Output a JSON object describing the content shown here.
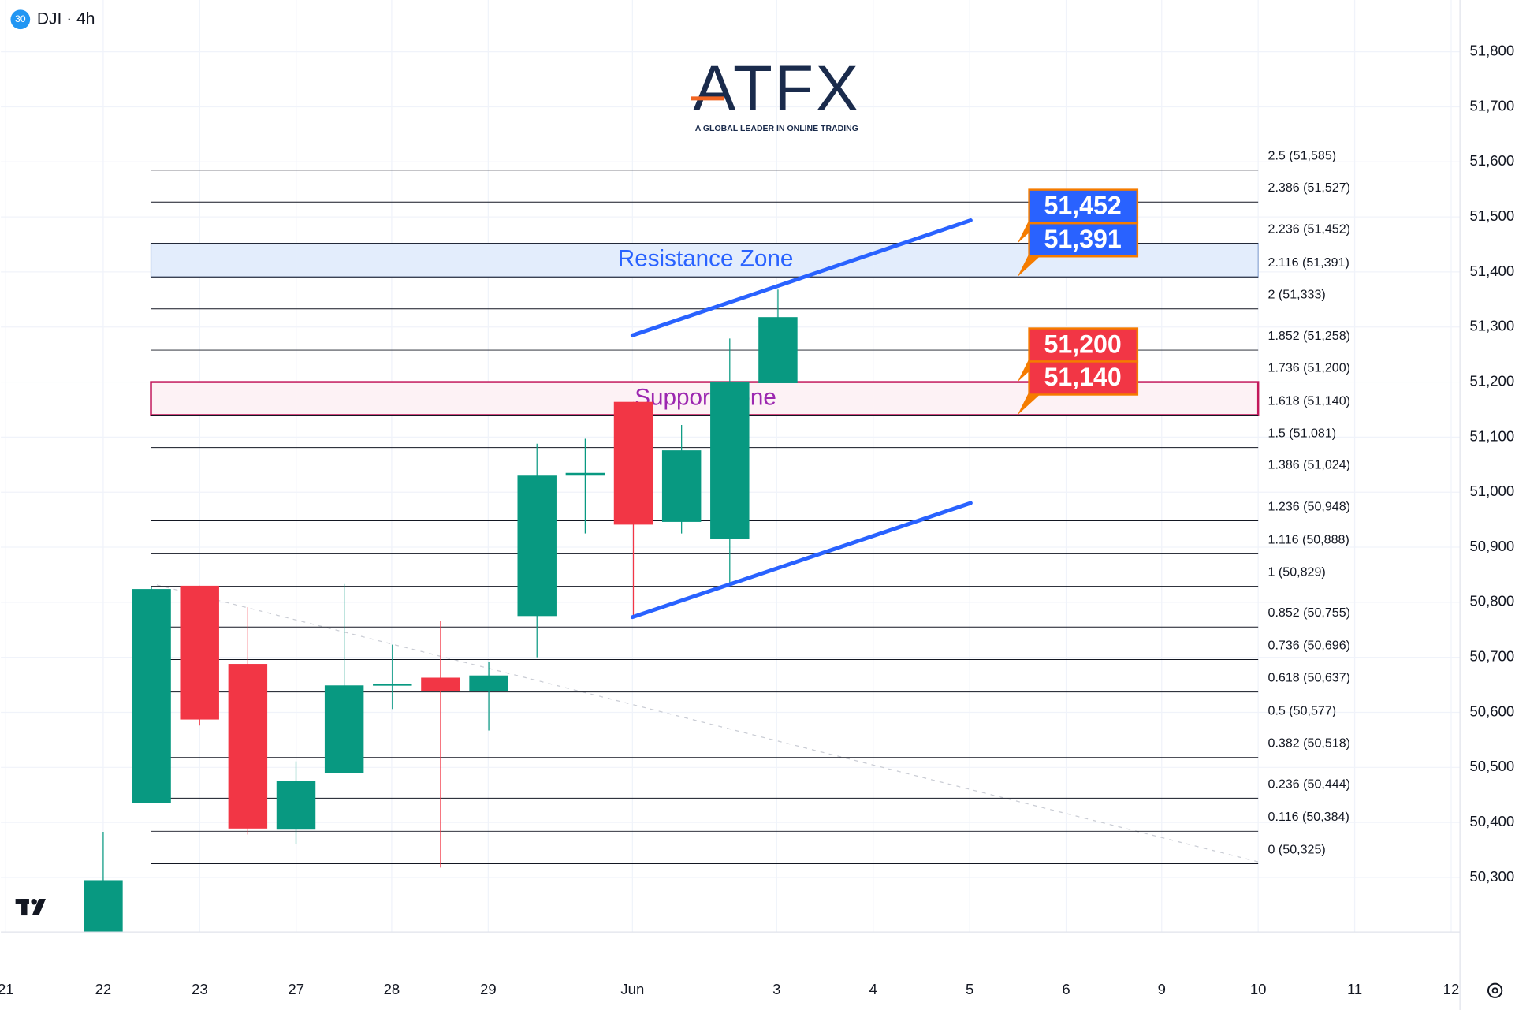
{
  "chart_data": {
    "type": "candlestick",
    "title": "DJI · 4h",
    "badge": "30",
    "brand": {
      "name": "ATFX",
      "tagline": "A GLOBAL LEADER IN ONLINE TRADING"
    },
    "up_color": "#089981",
    "down_color": "#f23645",
    "candles": {
      "open": [
        50201,
        50436,
        50830,
        50688,
        50387,
        50489,
        50649,
        50663,
        50638,
        50775,
        51030,
        51164,
        50946,
        50915,
        51198
      ],
      "high": [
        50383,
        50828,
        50830,
        50791,
        50511,
        50833,
        50723,
        50766,
        50691,
        51088,
        51097,
        51164,
        51122,
        51279,
        51368
      ],
      "low": [
        50201,
        50436,
        50576,
        50378,
        50360,
        50489,
        50606,
        50318,
        50567,
        50700,
        50925,
        50773,
        50925,
        50830,
        51198
      ],
      "close": [
        50295,
        50824,
        50587,
        50389,
        50475,
        50649,
        50652,
        50638,
        50667,
        51030,
        51035,
        50941,
        51076,
        51201,
        51318
      ]
    },
    "x_labels": [
      "21",
      "22",
      "23",
      "27",
      "28",
      "29",
      "Jun",
      "3",
      "4",
      "5",
      "6",
      "9",
      "10",
      "11",
      "12"
    ],
    "ylim": [
      50201,
      51894
    ],
    "yticks": [
      {
        "value": 51800,
        "label": "51,800"
      },
      {
        "value": 51700,
        "label": "51,700"
      },
      {
        "value": 51600,
        "label": "51,600"
      },
      {
        "value": 51500,
        "label": "51,500"
      },
      {
        "value": 51400,
        "label": "51,400"
      },
      {
        "value": 51300,
        "label": "51,300"
      },
      {
        "value": 51200,
        "label": "51,200"
      },
      {
        "value": 51100,
        "label": "51,100"
      },
      {
        "value": 51000,
        "label": "51,000"
      },
      {
        "value": 50900,
        "label": "50,900"
      },
      {
        "value": 50800,
        "label": "50,800"
      },
      {
        "value": 50700,
        "label": "50,700"
      },
      {
        "value": 50600,
        "label": "50,600"
      },
      {
        "value": 50500,
        "label": "50,500"
      },
      {
        "value": 50400,
        "label": "50,400"
      },
      {
        "value": 50300,
        "label": "50,300"
      }
    ],
    "grid": true,
    "fib_levels": [
      {
        "value": 51585,
        "label": "2.5 (51,585)"
      },
      {
        "value": 51527,
        "label": "2.386 (51,527)"
      },
      {
        "value": 51452,
        "label": "2.236 (51,452)"
      },
      {
        "value": 51391,
        "label": "2.116 (51,391)"
      },
      {
        "value": 51333,
        "label": "2 (51,333)"
      },
      {
        "value": 51258,
        "label": "1.852 (51,258)"
      },
      {
        "value": 51200,
        "label": "1.736 (51,200)"
      },
      {
        "value": 51140,
        "label": "1.618 (51,140)"
      },
      {
        "value": 51081,
        "label": "1.5 (51,081)"
      },
      {
        "value": 51024,
        "label": "1.386 (51,024)"
      },
      {
        "value": 50948,
        "label": "1.236 (50,948)"
      },
      {
        "value": 50888,
        "label": "1.116 (50,888)"
      },
      {
        "value": 50829,
        "label": "1 (50,829)"
      },
      {
        "value": 50755,
        "label": "0.852 (50,755)"
      },
      {
        "value": 50696,
        "label": "0.736 (50,696)"
      },
      {
        "value": 50637,
        "label": "0.618 (50,637)"
      },
      {
        "value": 50577,
        "label": "0.5 (50,577)"
      },
      {
        "value": 50518,
        "label": "0.382 (50,518)"
      },
      {
        "value": 50444,
        "label": "0.236 (50,444)"
      },
      {
        "value": 50384,
        "label": "0.116 (50,384)"
      },
      {
        "value": 50325,
        "label": "0 (50,325)"
      }
    ],
    "zones": [
      {
        "label": "Resistance Zone",
        "top": 51452,
        "bottom": 51391,
        "top_label": "51,452",
        "bottom_label": "51,391",
        "fill": "#e3edfc",
        "stroke": "#8fa9d6",
        "text_color": "#2962ff",
        "tag_color": "#2962ff"
      },
      {
        "label": "Support Zone",
        "top": 51200,
        "bottom": 51140,
        "top_label": "51,200",
        "bottom_label": "51,140",
        "fill": "#fdf2f5",
        "stroke": "#c2185b",
        "text_color": "#9c27b0",
        "tag_color": "#f23645"
      }
    ]
  }
}
